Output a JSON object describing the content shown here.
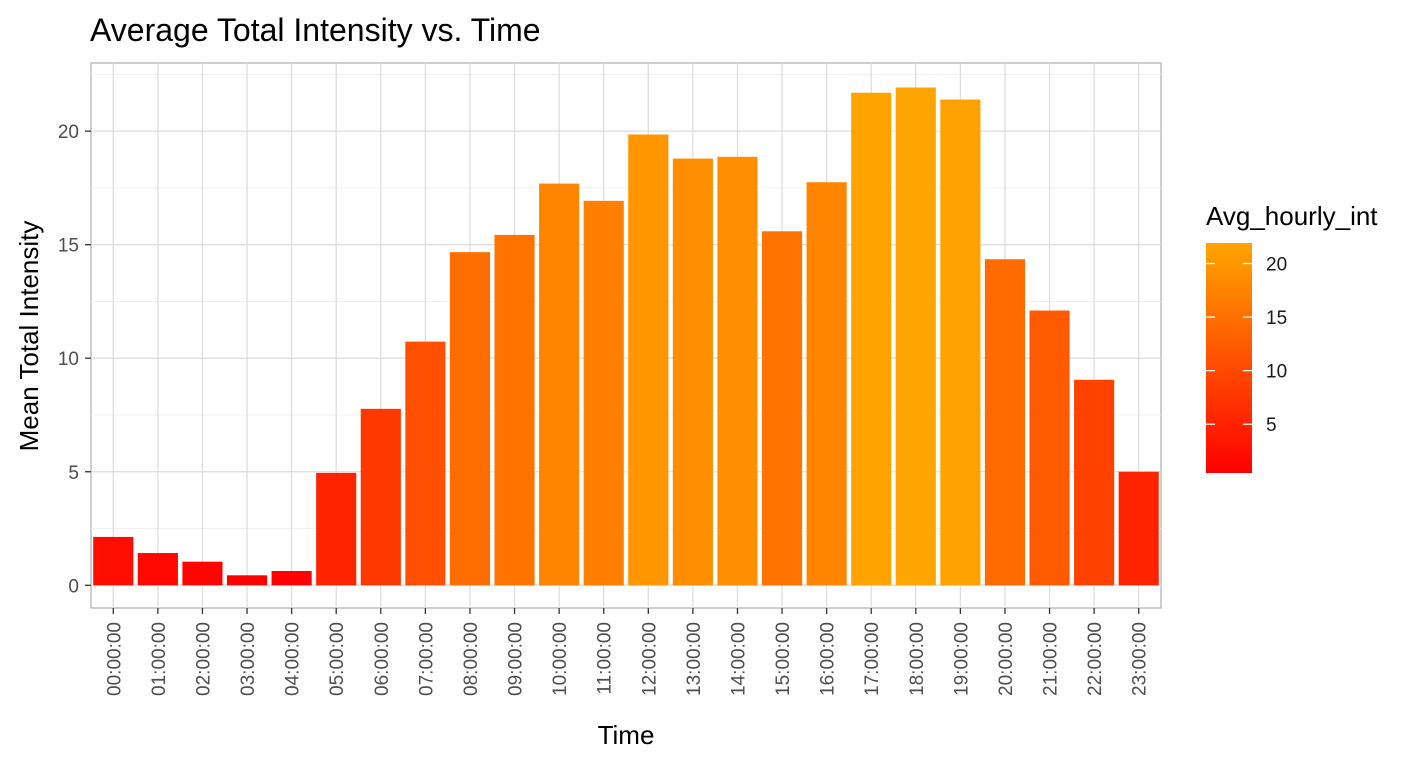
{
  "chart_data": {
    "type": "bar",
    "title": "Average Total Intensity vs. Time",
    "xlabel": "Time",
    "ylabel": "Mean Total Intensity",
    "categories": [
      "00:00:00",
      "01:00:00",
      "02:00:00",
      "03:00:00",
      "04:00:00",
      "05:00:00",
      "06:00:00",
      "07:00:00",
      "08:00:00",
      "09:00:00",
      "10:00:00",
      "11:00:00",
      "12:00:00",
      "13:00:00",
      "14:00:00",
      "15:00:00",
      "16:00:00",
      "17:00:00",
      "18:00:00",
      "19:00:00",
      "20:00:00",
      "21:00:00",
      "22:00:00",
      "23:00:00"
    ],
    "values": [
      2.13,
      1.42,
      1.04,
      0.44,
      0.63,
      4.95,
      7.77,
      10.73,
      14.67,
      15.43,
      17.69,
      16.93,
      19.85,
      18.79,
      18.87,
      15.59,
      17.75,
      21.69,
      21.92,
      21.39,
      14.36,
      12.1,
      9.05,
      5.0
    ],
    "ylim": [
      -1.0,
      23.0
    ],
    "y_ticks": [
      0,
      5,
      10,
      15,
      20
    ],
    "grid": true,
    "legend": {
      "title": "Avg_hourly_int",
      "placement": "right",
      "type": "colorbar",
      "range": [
        0.44,
        21.92
      ],
      "ticks": [
        5,
        10,
        15,
        20
      ],
      "color_low": "#ff0000",
      "color_high": "#ffa500"
    }
  }
}
